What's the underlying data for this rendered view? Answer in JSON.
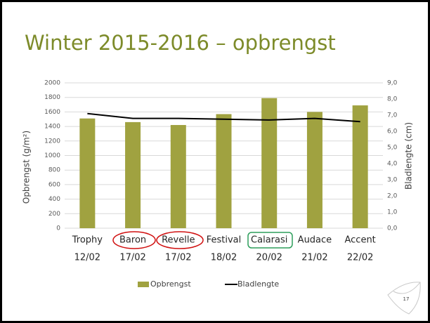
{
  "chart_data": {
    "type": "bar",
    "title": "Winter 2015-2016 – opbrengst",
    "categories": [
      "Trophy",
      "Baron",
      "Revelle",
      "Festival",
      "Calarasi",
      "Audace",
      "Accent"
    ],
    "date_labels": [
      "12/02",
      "17/02",
      "17/02",
      "18/02",
      "20/02",
      "21/02",
      "22/02"
    ],
    "series": [
      {
        "name": "Opbrengst",
        "color": "#a0a240",
        "values": [
          1510,
          1460,
          1420,
          1570,
          1790,
          1600,
          1690
        ]
      },
      {
        "name": "Bladlengte",
        "color": "#000000",
        "axis": "y2",
        "type": "line",
        "values": [
          7.1,
          6.8,
          6.8,
          6.75,
          6.7,
          6.8,
          6.6
        ]
      }
    ],
    "y_label": "Opbrengst (g/m²)",
    "y2_label": "Bladlengte (cm)",
    "ylim": [
      0,
      2000
    ],
    "yticks": [
      0,
      200,
      400,
      600,
      800,
      1000,
      1200,
      1400,
      1600,
      1800,
      2000
    ],
    "y2lim": [
      0,
      9
    ],
    "y2ticks": [
      {
        "value": 0,
        "label": "0,0"
      },
      {
        "value": 1,
        "label": "1,0"
      },
      {
        "value": 2,
        "label": "2,0"
      },
      {
        "value": 3,
        "label": "3,0"
      },
      {
        "value": 4,
        "label": "4,0"
      },
      {
        "value": 5,
        "label": "5,0"
      },
      {
        "value": 6,
        "label": "6,0"
      },
      {
        "value": 7,
        "label": "7,0"
      },
      {
        "value": 8,
        "label": "8,0"
      },
      {
        "value": 9,
        "label": "9,0"
      }
    ],
    "grid": true,
    "legend": "bottom"
  },
  "page_number": "17"
}
